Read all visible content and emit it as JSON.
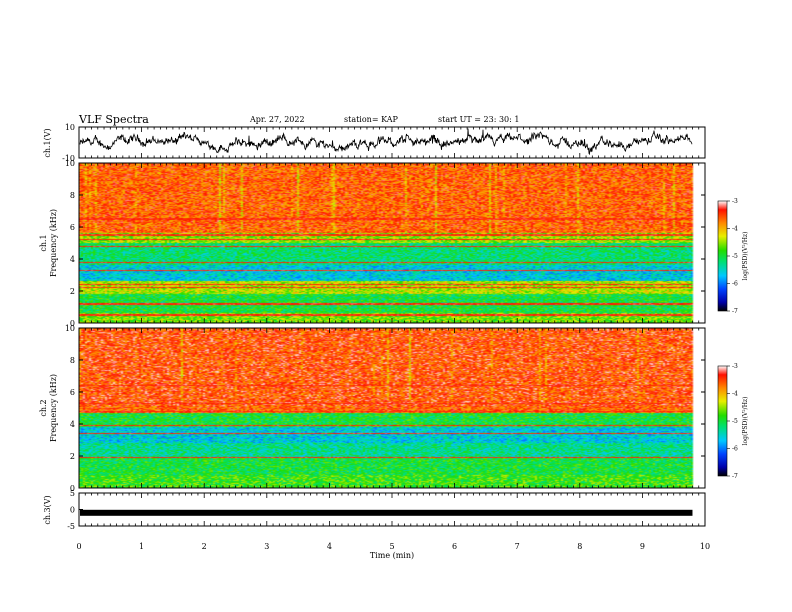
{
  "header": {
    "title": "VLF Spectra",
    "date": "Apr. 27, 2022",
    "station": "station= KAP",
    "start": "start  UT =   23: 30: 1"
  },
  "chart_data": [
    {
      "type": "line",
      "name": "ch1-waveform",
      "ylabel": "ch.1(V)",
      "ylim": [
        -10,
        10
      ],
      "y_ticks": [
        "10",
        "-10"
      ],
      "xlim": [
        0,
        10
      ],
      "x_extent_min": 9.8,
      "color": "#000000"
    },
    {
      "type": "heatmap",
      "name": "ch1-spectrogram",
      "ylabel_line1": "ch.1",
      "ylabel_line2": "Frequency (kHz)",
      "ylim": [
        0,
        10
      ],
      "y_ticks": [
        "0",
        "2",
        "4",
        "6",
        "8",
        "10"
      ],
      "xlim": [
        0,
        10
      ],
      "x_extent_min": 9.8,
      "band_profile": [
        {
          "f0": 0.0,
          "f1": 0.6,
          "level": -4.6
        },
        {
          "f0": 0.6,
          "f1": 1.8,
          "level": -5.0
        },
        {
          "f0": 1.8,
          "f1": 2.6,
          "level": -4.4
        },
        {
          "f0": 2.6,
          "f1": 3.6,
          "level": -5.6
        },
        {
          "f0": 3.6,
          "f1": 5.0,
          "level": -5.2
        },
        {
          "f0": 5.0,
          "f1": 5.6,
          "level": -4.5
        },
        {
          "f0": 5.6,
          "f1": 10.0,
          "level": -3.6
        }
      ],
      "lines_khz": [
        0.5,
        1.2,
        2.2,
        2.4,
        3.3,
        3.8,
        4.8,
        5.2,
        5.5,
        6.5
      ],
      "colorbar": {
        "label": "log(PSD)(V²/Hz)",
        "range": [
          -7,
          -3
        ],
        "ticks": [
          "-3",
          "-4",
          "-5",
          "-6",
          "-7"
        ]
      }
    },
    {
      "type": "heatmap",
      "name": "ch2-spectrogram",
      "ylabel_line1": "ch.2",
      "ylabel_line2": "Frequency (kHz)",
      "ylim": [
        0,
        10
      ],
      "y_ticks": [
        "0",
        "2",
        "4",
        "6",
        "8",
        "10"
      ],
      "xlim": [
        0,
        10
      ],
      "x_extent_min": 9.8,
      "band_profile": [
        {
          "f0": 0.0,
          "f1": 0.8,
          "level": -4.8
        },
        {
          "f0": 0.8,
          "f1": 1.9,
          "level": -5.0
        },
        {
          "f0": 1.9,
          "f1": 2.8,
          "level": -5.3
        },
        {
          "f0": 2.8,
          "f1": 3.8,
          "level": -5.6
        },
        {
          "f0": 3.8,
          "f1": 4.7,
          "level": -5.0
        },
        {
          "f0": 4.7,
          "f1": 5.1,
          "level": -3.6
        },
        {
          "f0": 5.1,
          "f1": 10.0,
          "level": -3.5
        }
      ],
      "lines_khz": [
        1.9,
        3.4,
        3.9,
        4.8,
        5.3,
        6.4
      ],
      "colorbar": {
        "label": "log(PSD)(V²/Hz)",
        "range": [
          -7,
          -3
        ],
        "ticks": [
          "-3",
          "-4",
          "-5",
          "-6",
          "-7"
        ]
      }
    },
    {
      "type": "line",
      "name": "ch3-waveform",
      "ylabel": "ch.3(V)",
      "ylim": [
        -5,
        5
      ],
      "y_ticks": [
        "5",
        "0",
        "-5"
      ],
      "xlim": [
        0,
        10
      ],
      "x_extent_min": 9.8,
      "level_v": -1.0,
      "color": "#000000"
    }
  ],
  "x_axis": {
    "label": "Time (min)",
    "ticks": [
      "0",
      "1",
      "2",
      "3",
      "4",
      "5",
      "6",
      "7",
      "8",
      "9",
      "10"
    ]
  }
}
